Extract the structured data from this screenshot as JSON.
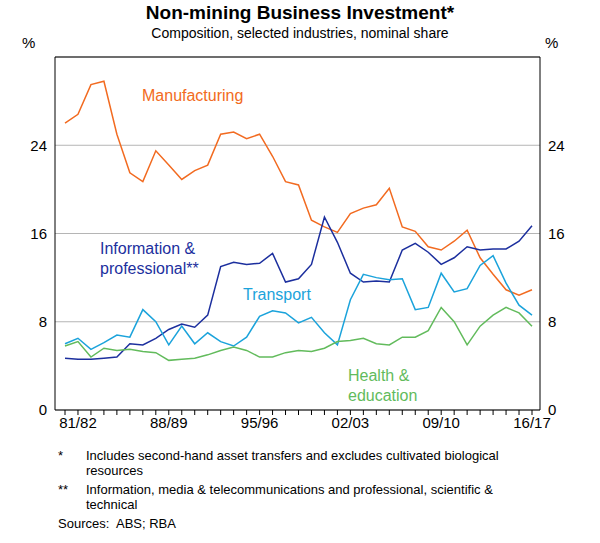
{
  "chart_data": {
    "type": "line",
    "title": "Non-mining Business Investment*",
    "subtitle": "Composition, selected industries, nominal share",
    "ylabel": "%",
    "categories": [
      null,
      "81/82",
      null,
      null,
      null,
      null,
      null,
      null,
      "88/89",
      null,
      null,
      null,
      null,
      null,
      null,
      "95/96",
      null,
      null,
      null,
      null,
      null,
      null,
      "02/03",
      null,
      null,
      null,
      null,
      null,
      null,
      "09/10",
      null,
      null,
      null,
      null,
      null,
      null,
      "16/17"
    ],
    "series": [
      {
        "name": "Manufacturing",
        "color": "#F26B21",
        "values": [
          26,
          26.8,
          29.5,
          29.8,
          25,
          21.5,
          20.7,
          23.5,
          22.2,
          20.9,
          21.7,
          22.2,
          25,
          25.2,
          24.6,
          25,
          23,
          20.7,
          20.4,
          17.2,
          16.6,
          16.1,
          17.8,
          18.3,
          18.6,
          20.1,
          16.6,
          16.2,
          14.8,
          14.5,
          15.3,
          16.3,
          13.8,
          12.3,
          10.9,
          10.4,
          10.9
        ]
      },
      {
        "name": "Information & professional**",
        "color": "#1C2F9E",
        "values": [
          4.7,
          4.6,
          4.6,
          4.7,
          4.8,
          6,
          5.9,
          6.5,
          7.3,
          7.8,
          7.5,
          8.6,
          13,
          13.4,
          13.2,
          13.3,
          14.2,
          11.6,
          11.9,
          13.2,
          17.5,
          15.2,
          12.4,
          11.6,
          11.7,
          11.6,
          14.5,
          15.1,
          14.3,
          13.2,
          13.8,
          14.8,
          14.5,
          14.6,
          14.6,
          15.3,
          16.7
        ]
      },
      {
        "name": "Transport",
        "color": "#1BA3DB",
        "values": [
          6,
          6.5,
          5.5,
          6.1,
          6.8,
          6.6,
          9.1,
          8,
          5.9,
          7.6,
          6,
          7,
          6.2,
          5.8,
          6.6,
          8.5,
          9,
          8.8,
          7.9,
          8.4,
          7,
          5.9,
          10,
          12.3,
          12,
          11.8,
          11.9,
          9.1,
          9.3,
          12.4,
          10.7,
          11,
          13.1,
          14,
          11.5,
          9.5,
          8.6
        ]
      },
      {
        "name": "Health & education",
        "color": "#62BB5C",
        "values": [
          5.8,
          6.2,
          4.8,
          5.6,
          5.4,
          5.5,
          5.3,
          5.2,
          4.5,
          4.6,
          4.7,
          5,
          5.4,
          5.7,
          5.4,
          4.8,
          4.8,
          5.2,
          5.4,
          5.3,
          5.6,
          6.2,
          6.3,
          6.5,
          6,
          5.9,
          6.6,
          6.6,
          7.2,
          9.3,
          8,
          5.9,
          7.6,
          8.6,
          9.3,
          8.8,
          7.6
        ]
      }
    ],
    "ylim": [
      0,
      32
    ],
    "yticks": [
      0,
      8,
      16,
      24
    ],
    "grid": true,
    "notes": [
      {
        "mark": "*",
        "text": "Includes second-hand asset transfers and excludes cultivated biological resources"
      },
      {
        "mark": "**",
        "text": "Information, media & telecommunications and professional, scientific & technical"
      }
    ],
    "sources_label": "Sources:",
    "sources": "ABS; RBA"
  }
}
